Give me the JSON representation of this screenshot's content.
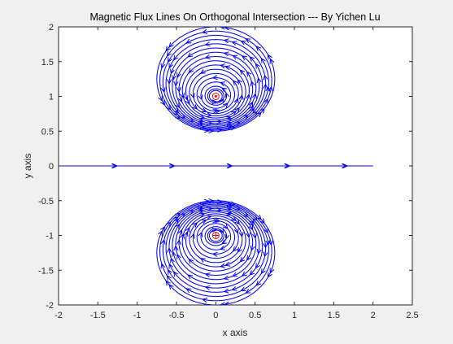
{
  "chart_data": {
    "type": "streamline",
    "title": "Magnetic Flux Lines On Orthogonal Intersection --- By Yichen Lu",
    "xlabel": "x axis",
    "ylabel": "y axis",
    "xlim": [
      -2,
      2.5
    ],
    "ylim": [
      -2,
      2
    ],
    "xticks": [
      "-2",
      "-1.5",
      "-1",
      "-0.5",
      "0",
      "0.5",
      "1",
      "1.5",
      "2",
      "2.5"
    ],
    "yticks": [
      "-2",
      "-1.5",
      "-1",
      "-0.5",
      "0",
      "0.5",
      "1",
      "1.5",
      "2"
    ],
    "grid": false,
    "streamline_color": "#0000ff",
    "marker_color": "#ff0000",
    "field_domain": {
      "x": [
        -2,
        2
      ],
      "y": [
        -2,
        2
      ]
    },
    "sources": [
      {
        "x": 0,
        "y": 1,
        "symbol": "dot-circle",
        "direction": "counterclockwise"
      },
      {
        "x": 0,
        "y": -1,
        "symbol": "cross-circle",
        "direction": "clockwise"
      }
    ]
  }
}
